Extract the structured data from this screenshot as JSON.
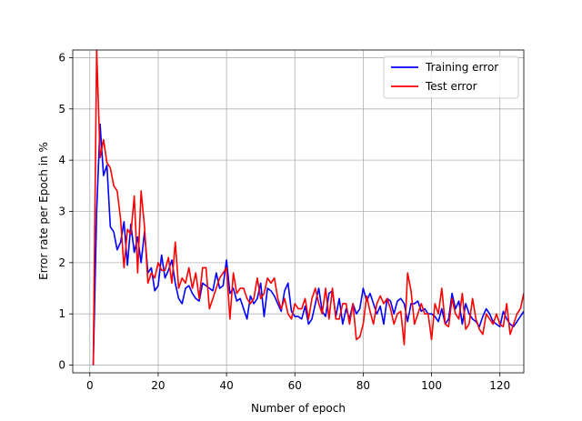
{
  "chart_data": {
    "type": "line",
    "title": "",
    "xlabel": "Number of epoch",
    "ylabel": "Error rate per Epoch in %",
    "xlim": [
      -5,
      127
    ],
    "ylim": [
      -0.15,
      6.15
    ],
    "xticks": [
      0,
      20,
      40,
      60,
      80,
      100,
      120
    ],
    "yticks": [
      0,
      1,
      2,
      3,
      4,
      5,
      6
    ],
    "grid": true,
    "legend_position": "top-right",
    "series": [
      {
        "name": "Training error",
        "color": "#0000ff",
        "x": [
          1,
          2,
          3,
          4,
          5,
          6,
          7,
          8,
          9,
          10,
          11,
          12,
          13,
          14,
          15,
          16,
          17,
          18,
          19,
          20,
          21,
          22,
          23,
          24,
          25,
          26,
          27,
          28,
          29,
          30,
          31,
          32,
          33,
          34,
          35,
          36,
          37,
          38,
          39,
          40,
          41,
          42,
          43,
          44,
          45,
          46,
          47,
          48,
          49,
          50,
          51,
          52,
          53,
          54,
          55,
          56,
          57,
          58,
          59,
          60,
          61,
          62,
          63,
          64,
          65,
          66,
          67,
          68,
          69,
          70,
          71,
          72,
          73,
          74,
          75,
          76,
          77,
          78,
          79,
          80,
          81,
          82,
          83,
          84,
          85,
          86,
          87,
          88,
          89,
          90,
          91,
          92,
          93,
          94,
          95,
          96,
          97,
          98,
          99,
          100,
          101,
          102,
          103,
          104,
          105,
          106,
          107,
          108,
          109,
          110,
          111,
          112,
          113,
          114,
          115,
          116,
          117,
          118,
          119,
          120,
          121,
          122,
          123,
          124,
          125,
          126,
          127
        ],
        "y": [
          0.0,
          3.0,
          4.7,
          3.7,
          3.9,
          2.7,
          2.6,
          2.25,
          2.4,
          2.8,
          1.95,
          2.75,
          2.2,
          2.5,
          2.0,
          2.6,
          1.8,
          1.9,
          1.45,
          1.55,
          2.15,
          1.7,
          1.85,
          2.05,
          1.6,
          1.3,
          1.2,
          1.5,
          1.55,
          1.4,
          1.3,
          1.25,
          1.6,
          1.55,
          1.5,
          1.45,
          1.8,
          1.5,
          1.55,
          2.05,
          1.4,
          1.5,
          1.25,
          1.3,
          1.1,
          0.9,
          1.35,
          1.2,
          1.3,
          1.6,
          0.95,
          1.5,
          1.45,
          1.35,
          1.2,
          1.05,
          1.45,
          1.6,
          1.05,
          0.95,
          0.95,
          0.9,
          1.15,
          0.8,
          0.9,
          1.2,
          1.5,
          1.05,
          0.95,
          1.4,
          1.45,
          0.95,
          1.3,
          0.8,
          1.1,
          0.9,
          1.2,
          1.0,
          1.1,
          1.5,
          1.25,
          1.4,
          1.2,
          1.0,
          1.15,
          0.8,
          1.3,
          1.25,
          1.0,
          1.25,
          1.3,
          1.2,
          0.85,
          1.2,
          1.2,
          1.25,
          1.05,
          1.1,
          1.0,
          1.0,
          0.95,
          0.85,
          1.1,
          0.8,
          0.9,
          1.4,
          1.1,
          1.25,
          0.8,
          1.2,
          1.0,
          0.9,
          0.85,
          0.75,
          0.95,
          1.1,
          1.0,
          0.85,
          0.8,
          0.75,
          1.05,
          0.9,
          0.8,
          0.75,
          0.85,
          0.95,
          1.05
        ]
      },
      {
        "name": "Test error",
        "color": "#ff0000",
        "x": [
          1,
          2,
          3,
          4,
          5,
          6,
          7,
          8,
          9,
          10,
          11,
          12,
          13,
          14,
          15,
          16,
          17,
          18,
          19,
          20,
          21,
          22,
          23,
          24,
          25,
          26,
          27,
          28,
          29,
          30,
          31,
          32,
          33,
          34,
          35,
          36,
          37,
          38,
          39,
          40,
          41,
          42,
          43,
          44,
          45,
          46,
          47,
          48,
          49,
          50,
          51,
          52,
          53,
          54,
          55,
          56,
          57,
          58,
          59,
          60,
          61,
          62,
          63,
          64,
          65,
          66,
          67,
          68,
          69,
          70,
          71,
          72,
          73,
          74,
          75,
          76,
          77,
          78,
          79,
          80,
          81,
          82,
          83,
          84,
          85,
          86,
          87,
          88,
          89,
          90,
          91,
          92,
          93,
          94,
          95,
          96,
          97,
          98,
          99,
          100,
          101,
          102,
          103,
          104,
          105,
          106,
          107,
          108,
          109,
          110,
          111,
          112,
          113,
          114,
          115,
          116,
          117,
          118,
          119,
          120,
          121,
          122,
          123,
          124,
          125,
          126,
          127
        ],
        "y": [
          0.0,
          6.15,
          4.05,
          4.4,
          3.95,
          3.85,
          3.5,
          3.4,
          2.85,
          1.9,
          2.65,
          2.55,
          3.3,
          1.8,
          3.4,
          2.7,
          1.6,
          1.8,
          1.7,
          2.0,
          1.85,
          1.85,
          2.1,
          1.6,
          2.4,
          1.5,
          1.7,
          1.6,
          1.9,
          1.5,
          1.8,
          1.3,
          1.9,
          1.9,
          1.1,
          1.3,
          1.5,
          1.7,
          1.8,
          1.9,
          0.9,
          1.8,
          1.4,
          1.5,
          1.5,
          1.3,
          1.2,
          1.3,
          1.7,
          1.3,
          1.4,
          1.7,
          1.6,
          1.7,
          1.3,
          1.1,
          1.3,
          1.0,
          0.9,
          1.2,
          1.1,
          1.1,
          1.3,
          0.9,
          1.3,
          1.5,
          1.2,
          1.0,
          1.5,
          0.9,
          1.5,
          0.9,
          0.9,
          1.2,
          1.2,
          0.8,
          1.2,
          0.5,
          0.55,
          0.8,
          1.35,
          1.05,
          0.8,
          1.2,
          1.35,
          1.2,
          1.3,
          1.1,
          0.8,
          1.0,
          1.05,
          0.4,
          1.8,
          1.45,
          0.8,
          1.0,
          1.2,
          1.0,
          1.0,
          0.5,
          1.2,
          1.0,
          1.5,
          0.8,
          0.75,
          1.3,
          1.0,
          0.9,
          1.4,
          0.7,
          0.8,
          1.3,
          0.9,
          0.7,
          0.6,
          1.0,
          0.9,
          0.8,
          1.0,
          0.8,
          0.75,
          1.2,
          0.6,
          0.8,
          1.0,
          1.1,
          1.4
        ]
      }
    ]
  }
}
